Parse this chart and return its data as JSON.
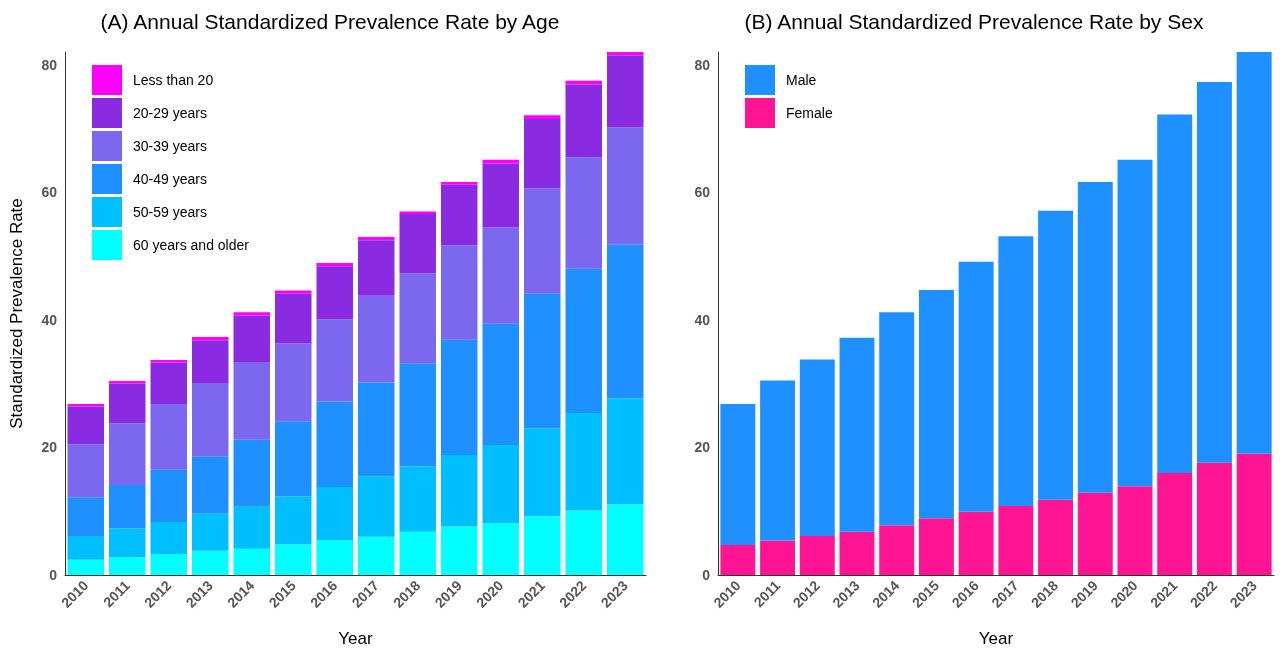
{
  "chart_data": [
    {
      "type": "bar",
      "title": "(A) Annual Standardized Prevalence Rate by Age",
      "xlabel": "Year",
      "ylabel": "Standardized Prevalence Rate",
      "categories": [
        "2010",
        "2011",
        "2012",
        "2013",
        "2014",
        "2015",
        "2016",
        "2017",
        "2018",
        "2019",
        "2020",
        "2021",
        "2022",
        "2023"
      ],
      "stacked": true,
      "ylim": [
        0,
        82
      ],
      "yticks": [
        0,
        20,
        40,
        60,
        80
      ],
      "grid": false,
      "legend": "top left",
      "series": [
        {
          "name": "60 years and older",
          "color": "#00ffff",
          "values": [
            2.4,
            2.8,
            3.3,
            3.8,
            4.1,
            4.8,
            5.5,
            6.0,
            6.8,
            7.6,
            8.1,
            9.2,
            10.1,
            11.1
          ]
        },
        {
          "name": "50-59 years",
          "color": "#00bfff",
          "values": [
            3.7,
            4.5,
            5.0,
            5.8,
            6.6,
            7.5,
            8.3,
            9.5,
            10.2,
            11.2,
            12.3,
            13.8,
            15.3,
            16.6
          ]
        },
        {
          "name": "40-49 years",
          "color": "#1e90ff",
          "values": [
            6.1,
            6.8,
            8.2,
            9.0,
            10.5,
            11.8,
            13.4,
            14.7,
            16.2,
            18.1,
            19.0,
            21.1,
            22.6,
            24.1
          ]
        },
        {
          "name": "30-39 years",
          "color": "#7b68ee",
          "values": [
            8.3,
            9.7,
            10.3,
            11.4,
            12.2,
            12.2,
            12.9,
            13.6,
            14.1,
            14.8,
            15.1,
            16.5,
            17.5,
            18.4
          ]
        },
        {
          "name": "20-29 years",
          "color": "#8a2be2",
          "values": [
            5.9,
            6.2,
            6.5,
            6.8,
            7.3,
            7.8,
            8.3,
            8.7,
            9.3,
            9.5,
            10.0,
            10.9,
            11.4,
            11.3
          ]
        },
        {
          "name": "Less than 20",
          "color": "#ff00ff",
          "values": [
            0.4,
            0.4,
            0.4,
            0.5,
            0.5,
            0.5,
            0.5,
            0.5,
            0.4,
            0.4,
            0.6,
            0.6,
            0.6,
            0.6
          ]
        }
      ]
    },
    {
      "type": "bar",
      "title": "(B) Annual Standardized Prevalence Rate by Sex",
      "xlabel": "Year",
      "categories": [
        "2010",
        "2011",
        "2012",
        "2013",
        "2014",
        "2015",
        "2016",
        "2017",
        "2018",
        "2019",
        "2020",
        "2021",
        "2022",
        "2023"
      ],
      "stacked": true,
      "ylim": [
        0,
        82
      ],
      "yticks": [
        0,
        20,
        40,
        60,
        80
      ],
      "grid": false,
      "legend": "top left",
      "series": [
        {
          "name": "Female",
          "color": "#ff1493",
          "values": [
            4.7,
            5.4,
            6.1,
            6.8,
            7.8,
            8.9,
            9.9,
            10.8,
            11.8,
            12.9,
            13.9,
            16.0,
            17.6,
            19.0
          ]
        },
        {
          "name": "Male",
          "color": "#1e90ff",
          "values": [
            22.1,
            25.1,
            27.7,
            30.4,
            33.4,
            35.8,
            39.2,
            42.3,
            45.3,
            48.7,
            51.2,
            56.2,
            59.7,
            63.0
          ]
        }
      ]
    }
  ]
}
